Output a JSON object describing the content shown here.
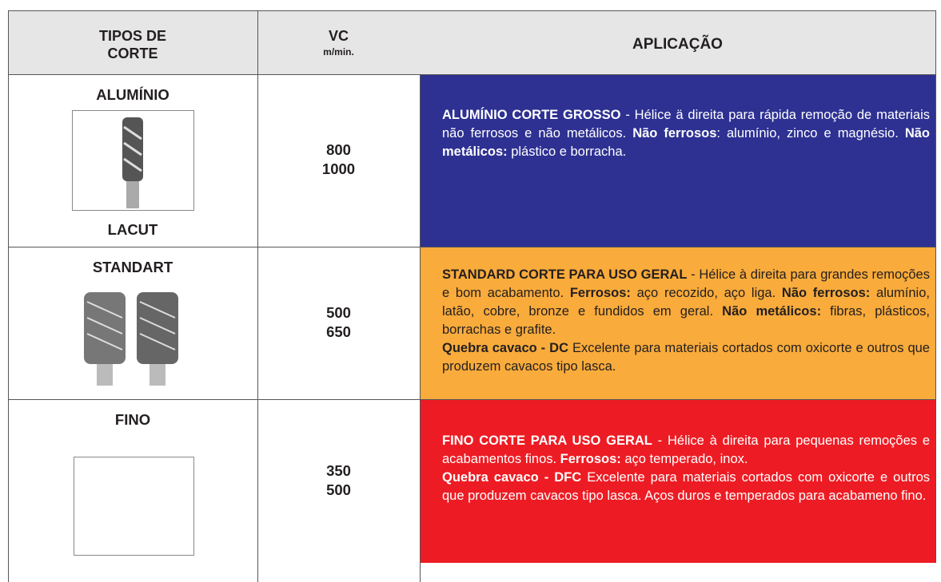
{
  "header": {
    "type_lines": [
      "TIPOS DE",
      "CORTE"
    ],
    "vc": "VC",
    "vc_unit": "m/min.",
    "application": "APLICAÇÃO"
  },
  "rows": [
    {
      "name": "ALUMÍNIO",
      "sub": "LACUT",
      "vc": [
        "800",
        "1000"
      ],
      "color": "#2e3192",
      "text_color": "#ffffff",
      "application": [
        [
          {
            "text": "ALUMÍNIO CORTE GROSSO",
            "bold": true
          },
          {
            "text": " - Hélice ä direita para rápida remoção de materiais não ferrosos e não metálicos. "
          },
          {
            "text": "Não ferrosos",
            "bold": true
          },
          {
            "text": ": alumínio, zinco e magnésio. "
          },
          {
            "text": "Não metálicos:",
            "bold": true
          },
          {
            "text": " plástico e borracha."
          }
        ]
      ]
    },
    {
      "name": "STANDART",
      "vc": [
        "500",
        "650"
      ],
      "color": "#f9ab3b",
      "text_color": "#231f20",
      "application": [
        [
          {
            "text": "STANDARD CORTE PARA USO GERAL",
            "bold": true
          },
          {
            "text": " - Hélice à direita para grandes remoções e bom acabamento. "
          },
          {
            "text": "Ferrosos:",
            "bold": true
          },
          {
            "text": " aço recozido, aço liga. "
          },
          {
            "text": "Não ferrosos:",
            "bold": true
          },
          {
            "text": " alumínio, latão, cobre, bronze e fundidos em geral. "
          },
          {
            "text": "Não metálicos:",
            "bold": true
          },
          {
            "text": " fibras, plásticos, borrachas e grafite."
          }
        ],
        [
          {
            "text": "Quebra cavaco - DC",
            "bold": true
          },
          {
            "text": " Excelente para materiais cortados com oxicorte e outros que produzem cavacos tipo lasca."
          }
        ]
      ]
    },
    {
      "name": "FINO",
      "vc": [
        "350",
        "500"
      ],
      "color": "#ed1c24",
      "text_color": "#ffffff",
      "application": [
        [
          {
            "text": "FINO CORTE PARA USO GERAL",
            "bold": true
          },
          {
            "text": " - Hélice à direita para pequenas remoções e acabamentos finos. "
          },
          {
            "text": "Ferrosos:",
            "bold": true
          },
          {
            "text": " aço temperado, inox."
          }
        ],
        [
          {
            "text": "Quebra cavaco - DFC",
            "bold": true
          },
          {
            "text": " Excelente para materiais cortados com oxicorte e outros que produzem cavacos tipo lasca. Aços duros e temperados para acabameno fino."
          }
        ]
      ]
    }
  ]
}
